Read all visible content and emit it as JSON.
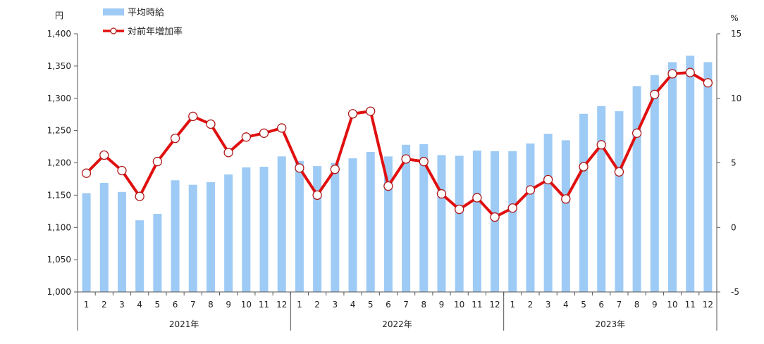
{
  "chart_data": {
    "type": "bar",
    "left_unit": "円",
    "right_unit": "%",
    "months": [
      "1",
      "2",
      "3",
      "4",
      "5",
      "6",
      "7",
      "8",
      "9",
      "10",
      "11",
      "12",
      "1",
      "2",
      "3",
      "4",
      "5",
      "6",
      "7",
      "8",
      "9",
      "10",
      "11",
      "12",
      "1",
      "2",
      "3",
      "4",
      "5",
      "6",
      "7",
      "8",
      "9",
      "10",
      "11",
      "12"
    ],
    "years": [
      "2021年",
      "2022年",
      "2023年"
    ],
    "y_left": {
      "min": 1000,
      "max": 1400,
      "ticks": [
        "1,000",
        "1,050",
        "1,100",
        "1,150",
        "1,200",
        "1,250",
        "1,300",
        "1,350",
        "1,400"
      ],
      "tick_values": [
        1000,
        1050,
        1100,
        1150,
        1200,
        1250,
        1300,
        1350,
        1400
      ]
    },
    "y_right": {
      "min": -5,
      "max": 15,
      "ticks": [
        "-5",
        "0",
        "5",
        "10",
        "15"
      ],
      "tick_values": [
        -5,
        0,
        5,
        10,
        15
      ]
    },
    "series": [
      {
        "name": "平均時給",
        "type": "bar",
        "color": "#9ecbf5",
        "values": [
          1153,
          1169,
          1155,
          1111,
          1121,
          1173,
          1166,
          1170,
          1182,
          1193,
          1194,
          1210,
          1203,
          1195,
          1200,
          1207,
          1217,
          1210,
          1228,
          1229,
          1212,
          1211,
          1219,
          1218,
          1218,
          1230,
          1245,
          1235,
          1276,
          1288,
          1280,
          1319,
          1336,
          1356,
          1366,
          1356
        ]
      },
      {
        "name": "対前年増加率",
        "type": "line",
        "color": "#e01010",
        "values": [
          4.2,
          5.6,
          4.4,
          2.4,
          5.1,
          6.9,
          8.6,
          8.0,
          5.8,
          7.0,
          7.3,
          7.7,
          4.6,
          2.5,
          4.5,
          8.8,
          9.0,
          3.2,
          5.3,
          5.1,
          2.6,
          1.4,
          2.3,
          0.8,
          1.5,
          2.9,
          3.7,
          2.2,
          4.7,
          6.4,
          4.3,
          7.3,
          10.3,
          11.9,
          12.0,
          11.2
        ]
      }
    ],
    "legend_position": "top-left"
  }
}
